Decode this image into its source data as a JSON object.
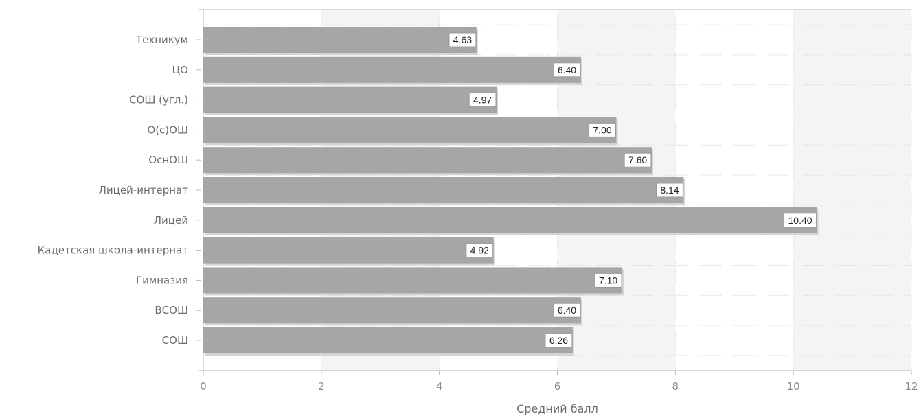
{
  "chart_data": {
    "type": "bar",
    "orientation": "horizontal",
    "categories": [
      "Техникум",
      "ЦО",
      "СОШ (угл.)",
      "О(с)ОШ",
      "ОснОШ",
      "Лицей-интернат",
      "Лицей",
      "Кадетская школа-интернат",
      "Гимназия",
      "ВСОШ",
      "СОШ"
    ],
    "values": [
      4.63,
      6.4,
      4.97,
      7.0,
      7.6,
      8.14,
      10.4,
      4.92,
      7.1,
      6.4,
      6.26
    ],
    "value_labels": [
      "4.63",
      "6.40",
      "4.97",
      "7.00",
      "7.60",
      "8.14",
      "10.40",
      "4.92",
      "7.10",
      "6.40",
      "6.26"
    ],
    "xlabel": "Средний балл",
    "ylabel": "",
    "xlim": [
      0,
      12
    ],
    "x_ticks": [
      "0",
      "2",
      "4",
      "6",
      "8",
      "10",
      "12"
    ],
    "grid": true,
    "legend": "none",
    "colors": {
      "bar": "#a6a6a6",
      "bar_shadow": "#d4d4d4",
      "band_light": "#ffffff",
      "band_dark": "#f4f4f4",
      "grid": "#d6d6d6",
      "axis": "#b8b8b8"
    }
  }
}
